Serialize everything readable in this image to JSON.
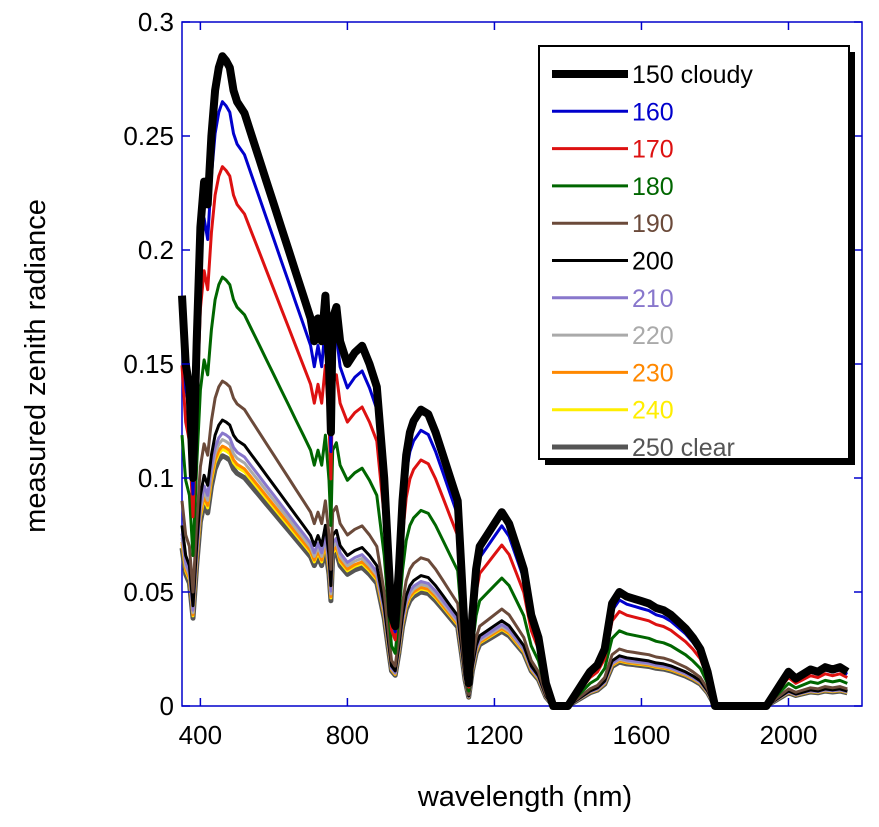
{
  "chart_data": {
    "type": "line",
    "title": "",
    "xlabel": "wavelength (nm)",
    "ylabel": "measured zenith radiance",
    "xlim": [
      350,
      2200
    ],
    "ylim": [
      0,
      0.3
    ],
    "xticks": [
      400,
      800,
      1200,
      1600,
      2000
    ],
    "yticks": [
      0,
      0.05,
      0.1,
      0.15,
      0.2,
      0.25,
      0.3
    ],
    "x_tick_labels": [
      "400",
      "800",
      "1200",
      "1600",
      "2000"
    ],
    "y_tick_labels": [
      "0",
      "0.05",
      "0.1",
      "0.15",
      "0.2",
      "0.25",
      "0.3"
    ],
    "grid": false,
    "legend_position": "top-right",
    "x": [
      350,
      360,
      370,
      380,
      390,
      400,
      410,
      420,
      430,
      440,
      450,
      460,
      470,
      480,
      490,
      500,
      520,
      540,
      560,
      580,
      600,
      620,
      640,
      660,
      680,
      700,
      710,
      720,
      730,
      740,
      750,
      755,
      760,
      770,
      780,
      800,
      820,
      840,
      860,
      880,
      900,
      910,
      920,
      930,
      940,
      950,
      960,
      970,
      980,
      1000,
      1020,
      1040,
      1060,
      1080,
      1100,
      1110,
      1120,
      1130,
      1140,
      1150,
      1160,
      1180,
      1200,
      1220,
      1240,
      1260,
      1280,
      1300,
      1320,
      1340,
      1360,
      1380,
      1400,
      1420,
      1440,
      1460,
      1480,
      1500,
      1520,
      1540,
      1560,
      1580,
      1600,
      1620,
      1640,
      1660,
      1680,
      1700,
      1720,
      1740,
      1760,
      1780,
      1800,
      1820,
      1840,
      1860,
      1880,
      1900,
      1920,
      1940,
      1960,
      1980,
      2000,
      2020,
      2040,
      2060,
      2080,
      2100,
      2120,
      2140,
      2160
    ],
    "series": [
      {
        "name": "150 cloudy",
        "color": "#000000",
        "width": 8,
        "scale": 1.0
      },
      {
        "name": "160",
        "color": "#0000cc",
        "width": 3,
        "scale": 0.93
      },
      {
        "name": "170",
        "color": "#dd1111",
        "width": 3,
        "scale": 0.83
      },
      {
        "name": "180",
        "color": "#006600",
        "width": 3,
        "scale": 0.66
      },
      {
        "name": "190",
        "color": "#6b4a3a",
        "width": 3,
        "scale": 0.5
      },
      {
        "name": "200",
        "color": "#000000",
        "width": 3,
        "scale": 0.44
      },
      {
        "name": "210",
        "color": "#8877cc",
        "width": 3,
        "scale": 0.42
      },
      {
        "name": "220",
        "color": "#aaaaaa",
        "width": 3,
        "scale": 0.41
      },
      {
        "name": "230",
        "color": "#ff8800",
        "width": 3,
        "scale": 0.4
      },
      {
        "name": "240",
        "color": "#ffee00",
        "width": 3,
        "scale": 0.395
      },
      {
        "name": "250 clear",
        "color": "#555555",
        "width": 5,
        "scale": 0.385
      }
    ],
    "base_curve": [
      0.18,
      0.15,
      0.14,
      0.1,
      0.16,
      0.21,
      0.23,
      0.22,
      0.25,
      0.27,
      0.28,
      0.285,
      0.283,
      0.28,
      0.27,
      0.265,
      0.26,
      0.25,
      0.24,
      0.23,
      0.22,
      0.21,
      0.2,
      0.19,
      0.18,
      0.17,
      0.16,
      0.17,
      0.16,
      0.18,
      0.15,
      0.12,
      0.17,
      0.175,
      0.16,
      0.15,
      0.155,
      0.158,
      0.15,
      0.14,
      0.1,
      0.07,
      0.04,
      0.035,
      0.06,
      0.09,
      0.11,
      0.12,
      0.125,
      0.13,
      0.128,
      0.12,
      0.11,
      0.1,
      0.09,
      0.06,
      0.03,
      0.01,
      0.04,
      0.06,
      0.07,
      0.075,
      0.08,
      0.085,
      0.08,
      0.07,
      0.06,
      0.04,
      0.03,
      0.01,
      0.0,
      0.0,
      0.0,
      0.005,
      0.01,
      0.015,
      0.018,
      0.025,
      0.045,
      0.05,
      0.048,
      0.047,
      0.046,
      0.045,
      0.043,
      0.042,
      0.04,
      0.037,
      0.034,
      0.03,
      0.025,
      0.015,
      0.0,
      0.0,
      0.0,
      0.0,
      0.0,
      0.0,
      0.0,
      0.0,
      0.005,
      0.01,
      0.015,
      0.012,
      0.014,
      0.016,
      0.015,
      0.017,
      0.016,
      0.017,
      0.015
    ]
  },
  "legend": {
    "items": [
      {
        "label": "150 cloudy",
        "color": "#000000",
        "text_color": "#000000",
        "width": 8
      },
      {
        "label": "160",
        "color": "#0000cc",
        "text_color": "#0000cc",
        "width": 3
      },
      {
        "label": "170",
        "color": "#dd1111",
        "text_color": "#dd1111",
        "width": 3
      },
      {
        "label": "180",
        "color": "#006600",
        "text_color": "#006600",
        "width": 3
      },
      {
        "label": "190",
        "color": "#6b4a3a",
        "text_color": "#6b4a3a",
        "width": 3
      },
      {
        "label": "200",
        "color": "#000000",
        "text_color": "#000000",
        "width": 3
      },
      {
        "label": "210",
        "color": "#8877cc",
        "text_color": "#8877cc",
        "width": 3
      },
      {
        "label": "220",
        "color": "#aaaaaa",
        "text_color": "#aaaaaa",
        "width": 3
      },
      {
        "label": "230",
        "color": "#ff8800",
        "text_color": "#ff8800",
        "width": 3
      },
      {
        "label": "240",
        "color": "#ffee00",
        "text_color": "#ffee00",
        "width": 3
      },
      {
        "label": "250 clear",
        "color": "#555555",
        "text_color": "#555555",
        "width": 5
      }
    ]
  }
}
